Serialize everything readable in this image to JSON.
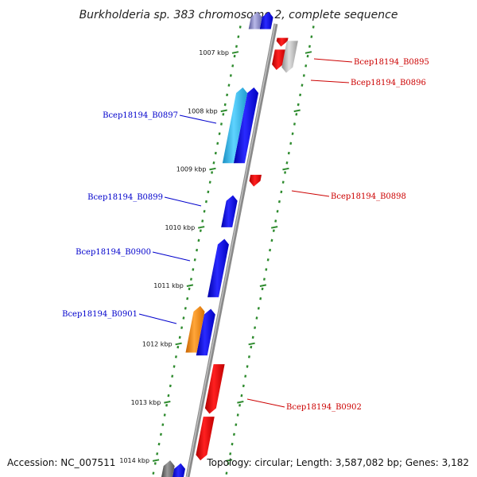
{
  "title": "Burkholderia sp. 383 chromosome 2, complete sequence",
  "footer": {
    "accession": "Accession: NC_007511",
    "summary": "Topology: circular; Length: 3,587,082 bp; Genes: 3,182"
  },
  "colors": {
    "forward_gene": "#0000ee",
    "reverse_gene": "#ee0000",
    "other_gene": "#3ab8e8",
    "rna_gene": "#ff8c00",
    "gray_gene": "#b8b8b8",
    "backbone": "#8a8a8a",
    "tick": "#2e8b2e",
    "label_forward": "#0000cc",
    "label_reverse": "#cc0000"
  },
  "scale_ticks": [
    {
      "kbp": 1007,
      "label": "1007 kbp"
    },
    {
      "kbp": 1008,
      "label": "1008 kbp"
    },
    {
      "kbp": 1009,
      "label": "1009 kbp"
    },
    {
      "kbp": 1010,
      "label": "1010 kbp"
    },
    {
      "kbp": 1011,
      "label": "1011 kbp"
    },
    {
      "kbp": 1012,
      "label": "1012 kbp"
    },
    {
      "kbp": 1013,
      "label": "1013 kbp"
    },
    {
      "kbp": 1014,
      "label": "1014 kbp"
    }
  ],
  "genes": [
    {
      "id": "Bcep18194_B0895",
      "label": "Bcep18194_B0895",
      "strand": "reverse",
      "track": "reverse",
      "start_kbp": 1006.75,
      "end_kbp": 1006.9
    },
    {
      "id": "Bcep18194_B0896",
      "label": "Bcep18194_B0896",
      "strand": "reverse",
      "track": "reverse",
      "start_kbp": 1006.95,
      "end_kbp": 1007.3
    },
    {
      "id": "gray_feature",
      "label": "",
      "strand": "reverse",
      "track": "reverse-outer",
      "start_kbp": 1006.8,
      "end_kbp": 1007.35
    },
    {
      "id": "Bcep18194_B0897",
      "label": "Bcep18194_B0897",
      "strand": "forward",
      "track": "forward",
      "start_kbp": 1007.6,
      "end_kbp": 1008.9
    },
    {
      "id": "cyan_feature",
      "label": "",
      "strand": "forward",
      "track": "forward-outer",
      "start_kbp": 1007.6,
      "end_kbp": 1008.9
    },
    {
      "id": "Bcep18194_B0898",
      "label": "Bcep18194_B0898",
      "strand": "reverse",
      "track": "reverse",
      "start_kbp": 1009.1,
      "end_kbp": 1009.3
    },
    {
      "id": "Bcep18194_B0899",
      "label": "Bcep18194_B0899",
      "strand": "forward",
      "track": "forward",
      "start_kbp": 1009.45,
      "end_kbp": 1010.0
    },
    {
      "id": "Bcep18194_B0900",
      "label": "Bcep18194_B0900",
      "strand": "forward",
      "track": "forward",
      "start_kbp": 1010.2,
      "end_kbp": 1011.2
    },
    {
      "id": "Bcep18194_B0901",
      "label": "Bcep18194_B0901",
      "strand": "forward",
      "track": "forward",
      "start_kbp": 1011.4,
      "end_kbp": 1012.2
    },
    {
      "id": "orange_feature",
      "label": "",
      "strand": "forward",
      "track": "forward-outer",
      "start_kbp": 1011.35,
      "end_kbp": 1012.15
    },
    {
      "id": "Bcep18194_B0902",
      "label": "Bcep18194_B0902",
      "strand": "reverse",
      "track": "reverse",
      "start_kbp": 1012.35,
      "end_kbp": 1013.2
    },
    {
      "id": "red_lower",
      "label": "",
      "strand": "reverse",
      "track": "reverse",
      "start_kbp": 1013.25,
      "end_kbp": 1014.0
    },
    {
      "id": "top_forward",
      "label": "",
      "strand": "forward",
      "track": "forward",
      "start_kbp": 1006.3,
      "end_kbp": 1006.6
    },
    {
      "id": "top_purple",
      "label": "",
      "strand": "forward",
      "track": "forward-outer",
      "start_kbp": 1006.3,
      "end_kbp": 1006.6
    },
    {
      "id": "bottom_forward",
      "label": "",
      "strand": "forward",
      "track": "forward",
      "start_kbp": 1014.05,
      "end_kbp": 1014.3
    },
    {
      "id": "bottom_gray",
      "label": "",
      "strand": "forward",
      "track": "forward-outer",
      "start_kbp": 1014.0,
      "end_kbp": 1014.3
    }
  ]
}
